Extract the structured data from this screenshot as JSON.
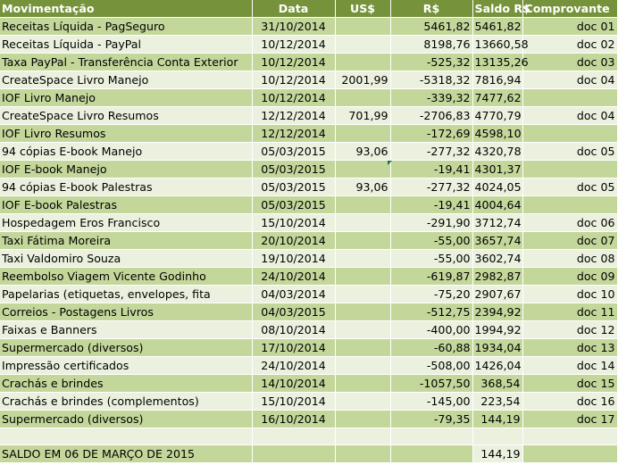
{
  "headers": {
    "movimentacao": "Movimentação",
    "data": "Data",
    "usd": "US$",
    "brl": "R$",
    "saldo": "Saldo R$",
    "comprovante": "Comprovante"
  },
  "rows": [
    {
      "mov": "Receitas Líquida - PagSeguro",
      "data": "31/10/2014",
      "usd": "",
      "brl": "5461,82",
      "saldo": "5461,82",
      "comp": "doc 01"
    },
    {
      "mov": "Receitas Líquida - PayPal",
      "data": "10/12/2014",
      "usd": "",
      "brl": "8198,76",
      "saldo": "13660,58",
      "comp": "doc 02"
    },
    {
      "mov": "Taxa PayPal - Transferência Conta Exterior",
      "data": "10/12/2014",
      "usd": "",
      "brl": "-525,32",
      "saldo": "13135,26",
      "comp": "doc 03"
    },
    {
      "mov": "CreateSpace Livro Manejo",
      "data": "10/12/2014",
      "usd": "2001,99",
      "brl": "-5318,32",
      "saldo": "7816,94",
      "comp": "doc 04"
    },
    {
      "mov": "IOF Livro Manejo",
      "data": "10/12/2014",
      "usd": "",
      "brl": "-339,32",
      "saldo": "7477,62",
      "comp": ""
    },
    {
      "mov": "CreateSpace Livro Resumos",
      "data": "12/12/2014",
      "usd": "701,99",
      "brl": "-2706,83",
      "saldo": "4770,79",
      "comp": "doc 04"
    },
    {
      "mov": "IOF Livro Resumos",
      "data": "12/12/2014",
      "usd": "",
      "brl": "-172,69",
      "saldo": "4598,10",
      "comp": ""
    },
    {
      "mov": "94 cópias E-book Manejo",
      "data": "05/03/2015",
      "usd": "93,06",
      "brl": "-277,32",
      "saldo": "4320,78",
      "comp": "doc 05"
    },
    {
      "mov": "IOF E-book Manejo",
      "data": "05/03/2015",
      "usd": "",
      "brl": "-19,41",
      "saldo": "4301,37",
      "comp": ""
    },
    {
      "mov": "94 cópias E-book Palestras",
      "data": "05/03/2015",
      "usd": "93,06",
      "brl": "-277,32",
      "saldo": "4024,05",
      "comp": "doc 05"
    },
    {
      "mov": "IOF E-book Palestras",
      "data": "05/03/2015",
      "usd": "",
      "brl": "-19,41",
      "saldo": "4004,64",
      "comp": ""
    },
    {
      "mov": "Hospedagem Eros Francisco",
      "data": "15/10/2014",
      "usd": "",
      "brl": "-291,90",
      "saldo": "3712,74",
      "comp": "doc 06"
    },
    {
      "mov": "Taxi Fátima Moreira",
      "data": "20/10/2014",
      "usd": "",
      "brl": "-55,00",
      "saldo": "3657,74",
      "comp": "doc 07"
    },
    {
      "mov": "Taxi Valdomiro Souza",
      "data": "19/10/2014",
      "usd": "",
      "brl": "-55,00",
      "saldo": "3602,74",
      "comp": "doc 08"
    },
    {
      "mov": "Reembolso Viagem Vicente Godinho",
      "data": "24/10/2014",
      "usd": "",
      "brl": "-619,87",
      "saldo": "2982,87",
      "comp": "doc 09"
    },
    {
      "mov": "Papelarias (etiquetas, envelopes, fita",
      "data": "04/03/2014",
      "usd": "",
      "brl": "-75,20",
      "saldo": "2907,67",
      "comp": "doc 10"
    },
    {
      "mov": "Correios - Postagens Livros",
      "data": "04/03/2015",
      "usd": "",
      "brl": "-512,75",
      "saldo": "2394,92",
      "comp": "doc 11"
    },
    {
      "mov": "Faixas e Banners",
      "data": "08/10/2014",
      "usd": "",
      "brl": "-400,00",
      "saldo": "1994,92",
      "comp": "doc 12"
    },
    {
      "mov": "Supermercado (diversos)",
      "data": "17/10/2014",
      "usd": "",
      "brl": "-60,88",
      "saldo": "1934,04",
      "comp": "doc 13"
    },
    {
      "mov": "Impressão certificados",
      "data": "24/10/2014",
      "usd": "",
      "brl": "-508,00",
      "saldo": "1426,04",
      "comp": "doc 14"
    },
    {
      "mov": "Crachás e brindes",
      "data": "14/10/2014",
      "usd": "",
      "brl": "-1057,50",
      "saldo": "368,54",
      "comp": "doc 15"
    },
    {
      "mov": "Crachás e brindes (complementos)",
      "data": "15/10/2014",
      "usd": "",
      "brl": "-145,00",
      "saldo": "223,54",
      "comp": "doc 16"
    },
    {
      "mov": "Supermercado (diversos)",
      "data": "16/10/2014",
      "usd": "",
      "brl": "-79,35",
      "saldo": "144,19",
      "comp": "doc 17"
    }
  ],
  "total": {
    "label": "SALDO EM 06 DE MARÇO DE 2015",
    "value": "144,19"
  },
  "colors": {
    "header": "#76933c",
    "band_dark": "#c4d79b",
    "band_light": "#ebf1de"
  }
}
